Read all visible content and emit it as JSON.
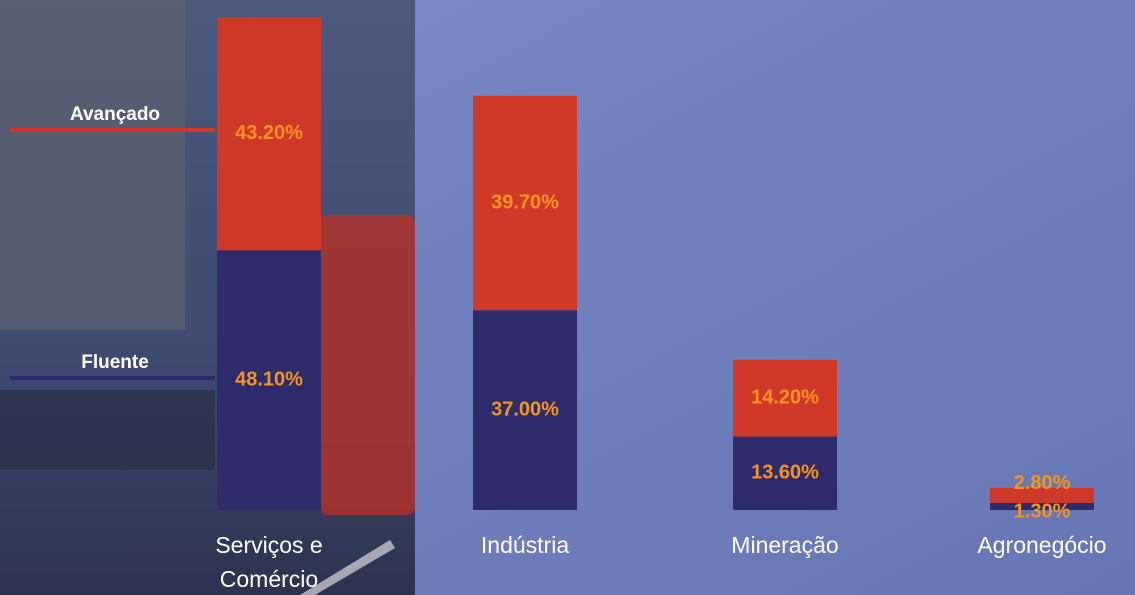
{
  "chart_data": {
    "type": "stacked_bar",
    "categories": [
      "Serviços e Comércio",
      "Indústria",
      "Mineração",
      "Agronegócio"
    ],
    "series": [
      {
        "name": "Fluente",
        "color": "#2e2b6b",
        "values": [
          48.1,
          37.0,
          13.6,
          1.3
        ],
        "value_labels": [
          "48.10%",
          "37.00%",
          "13.60%",
          "1.30%"
        ]
      },
      {
        "name": "Avançado",
        "color": "#d0392a",
        "values": [
          43.2,
          39.7,
          14.2,
          2.8
        ],
        "value_labels": [
          "43.20%",
          "39.70%",
          "14.20%",
          "2.80%"
        ]
      }
    ],
    "label_color": "#f7941d"
  }
}
